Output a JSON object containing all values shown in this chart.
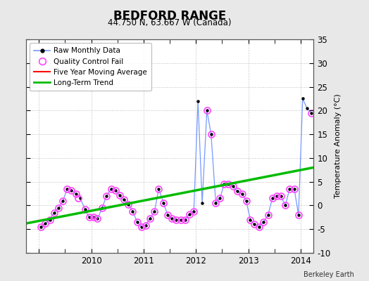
{
  "title": "BEDFORD RANGE",
  "subtitle": "44.750 N, 63.667 W (Canada)",
  "ylabel_right": "Temperature Anomaly (°C)",
  "credit": "Berkeley Earth",
  "ylim": [
    -10,
    35
  ],
  "yticks": [
    -10,
    -5,
    0,
    5,
    10,
    15,
    20,
    25,
    30,
    35
  ],
  "xlim_start": 2008.75,
  "xlim_end": 2014.25,
  "bg_color": "#e8e8e8",
  "plot_bg_color": "#ffffff",
  "raw_x": [
    2009.04,
    2009.12,
    2009.21,
    2009.29,
    2009.38,
    2009.46,
    2009.54,
    2009.62,
    2009.71,
    2009.79,
    2009.88,
    2009.96,
    2010.04,
    2010.12,
    2010.21,
    2010.29,
    2010.38,
    2010.46,
    2010.54,
    2010.62,
    2010.71,
    2010.79,
    2010.88,
    2010.96,
    2011.04,
    2011.12,
    2011.21,
    2011.29,
    2011.38,
    2011.46,
    2011.54,
    2011.62,
    2011.71,
    2011.79,
    2011.88,
    2011.96,
    2012.04,
    2012.12,
    2012.21,
    2012.29,
    2012.38,
    2012.46,
    2012.54,
    2012.62,
    2012.71,
    2012.79,
    2012.88,
    2012.96,
    2013.04,
    2013.12,
    2013.21,
    2013.29,
    2013.38,
    2013.46,
    2013.54,
    2013.62,
    2013.71,
    2013.79,
    2013.88,
    2013.96,
    2014.04,
    2014.12,
    2014.21
  ],
  "raw_y": [
    -4.5,
    -3.8,
    -3.0,
    -1.5,
    -0.5,
    1.0,
    3.5,
    3.2,
    2.5,
    1.5,
    -0.8,
    -2.5,
    -2.5,
    -2.8,
    -0.5,
    2.0,
    3.5,
    3.2,
    2.2,
    1.2,
    0.2,
    -1.2,
    -3.5,
    -4.5,
    -4.2,
    -2.8,
    -1.2,
    3.5,
    0.5,
    -2.0,
    -2.8,
    -3.0,
    -3.0,
    -3.0,
    -1.8,
    -1.2,
    22.0,
    0.5,
    20.0,
    15.0,
    0.5,
    1.5,
    4.5,
    4.5,
    4.0,
    3.0,
    2.5,
    1.0,
    -3.0,
    -4.0,
    -4.5,
    -3.5,
    -2.0,
    1.5,
    2.0,
    2.0,
    0.0,
    3.5,
    3.5,
    -2.0,
    22.5,
    20.5,
    19.5
  ],
  "qc_fail_x": [
    2009.04,
    2009.12,
    2009.21,
    2009.29,
    2009.38,
    2009.46,
    2009.54,
    2009.62,
    2009.71,
    2009.75,
    2009.88,
    2009.96,
    2010.04,
    2010.12,
    2010.21,
    2010.29,
    2010.38,
    2010.46,
    2010.54,
    2010.62,
    2010.71,
    2010.79,
    2010.88,
    2010.96,
    2011.04,
    2011.12,
    2011.21,
    2011.29,
    2011.38,
    2011.46,
    2011.54,
    2011.62,
    2011.71,
    2011.79,
    2011.88,
    2011.96,
    2012.21,
    2012.29,
    2012.38,
    2012.46,
    2012.54,
    2012.62,
    2012.71,
    2012.79,
    2012.88,
    2012.96,
    2013.04,
    2013.12,
    2013.21,
    2013.29,
    2013.38,
    2013.46,
    2013.54,
    2013.62,
    2013.71,
    2013.79,
    2013.88,
    2013.96,
    2014.21
  ],
  "qc_fail_y": [
    -4.5,
    -3.8,
    -3.0,
    -1.5,
    -0.5,
    1.0,
    3.5,
    3.2,
    2.5,
    1.5,
    -0.8,
    -2.5,
    -2.5,
    -2.8,
    -0.5,
    2.0,
    3.5,
    3.2,
    2.2,
    1.2,
    0.2,
    -1.2,
    -3.5,
    -4.5,
    -4.2,
    -2.8,
    -1.2,
    3.5,
    0.5,
    -2.0,
    -2.8,
    -3.0,
    -3.0,
    -3.0,
    -1.8,
    -1.2,
    20.0,
    15.0,
    0.5,
    1.5,
    4.5,
    4.5,
    4.0,
    3.0,
    2.5,
    1.0,
    -3.0,
    -4.0,
    -4.5,
    -3.5,
    -2.0,
    1.5,
    2.0,
    2.0,
    0.0,
    3.5,
    3.5,
    -2.0,
    19.5
  ],
  "trend_x": [
    2008.75,
    2014.25
  ],
  "trend_y": [
    -3.8,
    8.0
  ],
  "raw_line_color": "#7799ff",
  "raw_marker_color": "#000000",
  "qc_color": "#ff44ff",
  "trend_color": "#00bb00",
  "mavg_color": "#ff0000"
}
